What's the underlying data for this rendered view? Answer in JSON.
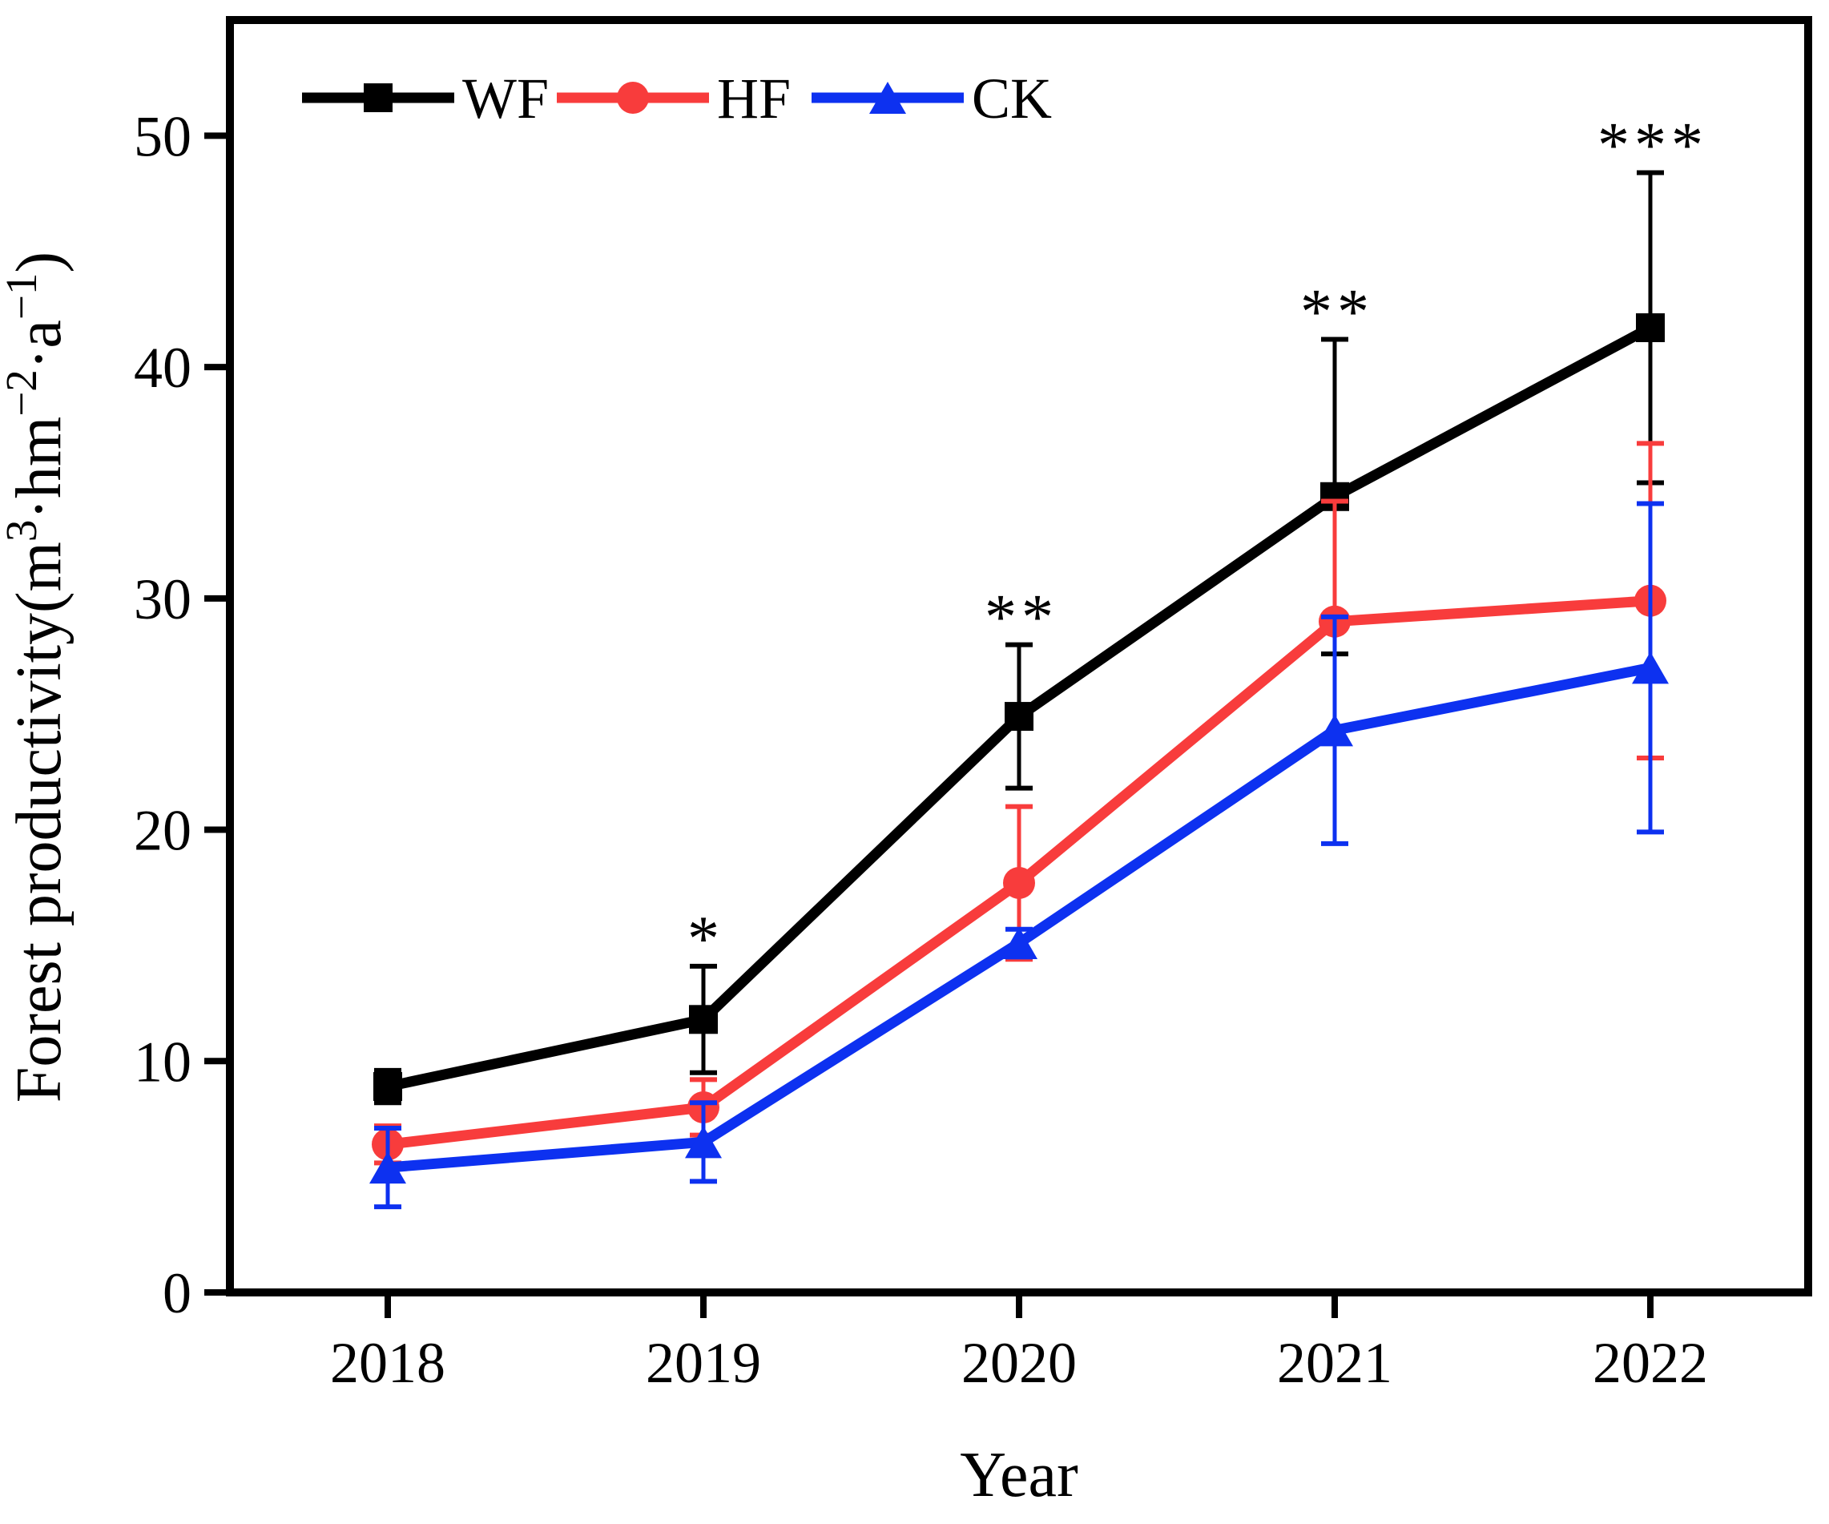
{
  "figure": {
    "background": "#ffffff",
    "frame_color": "#000000"
  },
  "chart_data": {
    "type": "line",
    "title": "",
    "xlabel": "Year",
    "ylabel": "Forest productivity(m³·hm⁻²·a⁻¹)",
    "ylabel_parts": [
      {
        "text": "Forest productivity(m"
      },
      {
        "text": "3",
        "sup": true
      },
      {
        "text": "·hm"
      },
      {
        "text": "−2",
        "sup": true
      },
      {
        "text": "·a"
      },
      {
        "text": "−1",
        "sup": true
      },
      {
        "text": ")"
      }
    ],
    "x_categories": [
      "2018",
      "2019",
      "2020",
      "2021",
      "2022"
    ],
    "y_ticks": [
      0,
      10,
      20,
      30,
      40,
      50
    ],
    "ylim": [
      0,
      55
    ],
    "grid": false,
    "legend_position": "top-left-inside",
    "error_bars": true,
    "series": [
      {
        "name": "WF",
        "color": "#000000",
        "marker": "square",
        "values": [
          8.9,
          11.8,
          24.9,
          34.4,
          41.7
        ],
        "errors": [
          0.7,
          2.3,
          3.1,
          6.8,
          6.7
        ]
      },
      {
        "name": "HF",
        "color": "#F83C3C",
        "marker": "circle",
        "values": [
          6.4,
          8.0,
          17.7,
          29.0,
          29.9
        ],
        "errors": [
          0.8,
          1.2,
          3.3,
          5.2,
          6.8
        ]
      },
      {
        "name": "CK",
        "color": "#0D31F0",
        "marker": "triangle",
        "values": [
          5.4,
          6.5,
          15.1,
          24.3,
          27.0
        ],
        "errors": [
          1.7,
          1.7,
          0.6,
          4.9,
          7.1
        ]
      }
    ],
    "significance": [
      {
        "x": "2019",
        "label": "*"
      },
      {
        "x": "2020",
        "label": "**"
      },
      {
        "x": "2021",
        "label": "**"
      },
      {
        "x": "2022",
        "label": "***"
      }
    ]
  }
}
